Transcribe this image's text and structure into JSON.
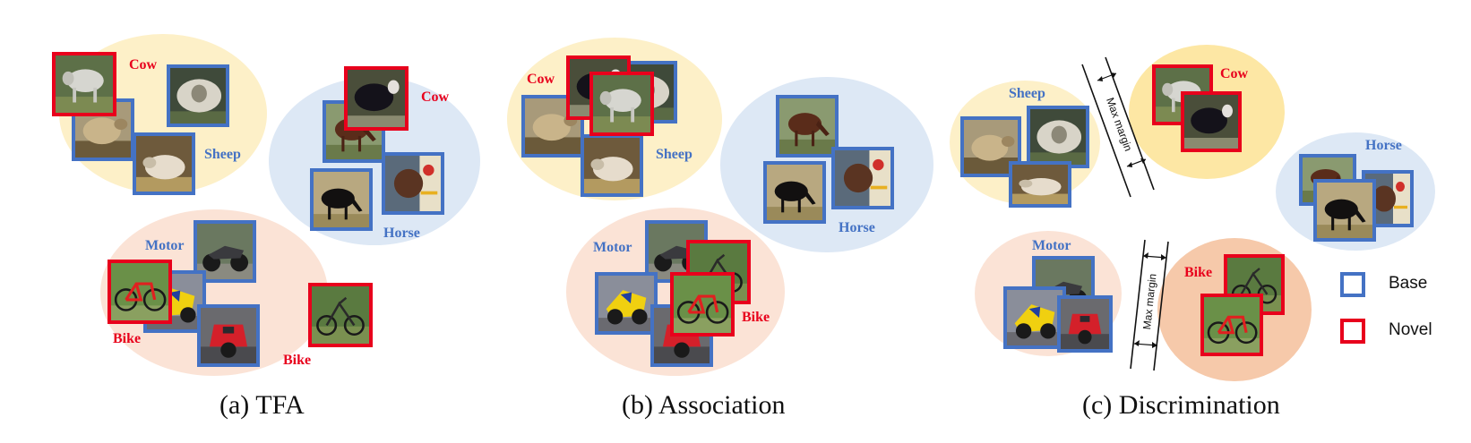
{
  "panels": [
    {
      "caption": "(a) TFA",
      "labels": {
        "cow": "Cow",
        "sheep": "Sheep",
        "horse": "Horse",
        "cow2": "Cow",
        "motor": "Motor",
        "bike": "Bike",
        "bike2": "Bike"
      }
    },
    {
      "caption": "(b) Association",
      "labels": {
        "cow": "Cow",
        "sheep": "Sheep",
        "horse": "Horse",
        "motor": "Motor",
        "bike": "Bike"
      }
    },
    {
      "caption": "(c) Discrimination",
      "labels": {
        "sheep": "Sheep",
        "cow": "Cow",
        "horse": "Horse",
        "motor": "Motor",
        "bike": "Bike"
      },
      "margin_label": "Max margin"
    }
  ],
  "legend": {
    "base": "Base",
    "novel": "Novel"
  },
  "colors": {
    "base": "#4472c4",
    "novel": "#e8001c"
  },
  "icons": {
    "sheep": "sheep-photo",
    "cow": "cow-photo",
    "horse": "horse-photo",
    "motor": "motorbike-photo",
    "bike": "bicycle-photo"
  }
}
